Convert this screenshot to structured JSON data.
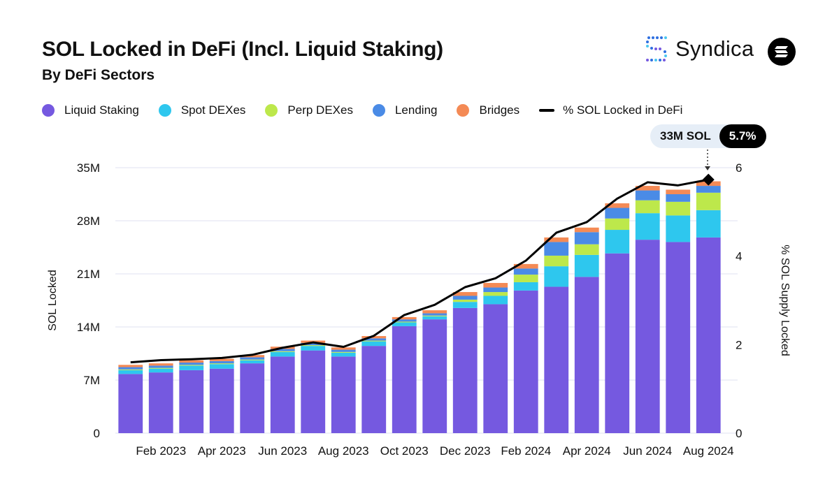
{
  "header": {
    "title": "SOL Locked in DeFi (Incl. Liquid Staking)",
    "subtitle": "By DeFi Sectors",
    "brand": "Syndica"
  },
  "callout": {
    "amount": "33M SOL",
    "percent": "5.7%"
  },
  "colors": {
    "liquid_staking": "#7559e0",
    "spot_dexes": "#2ec7ee",
    "perp_dexes": "#bde84b",
    "lending": "#4a8be6",
    "bridges": "#f48a55",
    "line": "#000000",
    "grid": "#dfe2f0"
  },
  "chart_data": {
    "type": "bar",
    "stacked": true,
    "ylabel": "SOL Locked",
    "y2label": "% SOL Supply Locked",
    "ylim": [
      0,
      35000000
    ],
    "y2lim": [
      0,
      6
    ],
    "yticks": [
      "0",
      "7M",
      "14M",
      "21M",
      "28M",
      "35M"
    ],
    "y2ticks": [
      "0",
      "2",
      "4",
      "6"
    ],
    "x_tick_labels": [
      "Feb 2023",
      "Apr 2023",
      "Jun 2023",
      "Aug 2023",
      "Oct 2023",
      "Dec 2023",
      "Feb 2024",
      "Apr 2024",
      "Jun 2024",
      "Aug 2024"
    ],
    "categories": [
      "Jan 2023",
      "Feb 2023",
      "Mar 2023",
      "Apr 2023",
      "May 2023",
      "Jun 2023",
      "Jul 2023",
      "Aug 2023",
      "Sep 2023",
      "Oct 2023",
      "Nov 2023",
      "Dec 2023",
      "Jan 2024",
      "Feb 2024",
      "Mar 2024",
      "Apr 2024",
      "May 2024",
      "Jun 2024",
      "Jul 2024",
      "Aug 2024"
    ],
    "series": [
      {
        "name": "Liquid Staking",
        "key": "liquid_staking",
        "values": [
          7.8,
          8.0,
          8.3,
          8.5,
          9.2,
          10.1,
          10.9,
          10.1,
          11.5,
          14.1,
          15.0,
          16.5,
          17.0,
          18.8,
          19.3,
          20.6,
          23.7,
          25.5,
          25.2,
          25.8
        ]
      },
      {
        "name": "Spot DEXes",
        "key": "spot_dexes",
        "values": [
          0.5,
          0.5,
          0.6,
          0.6,
          0.4,
          0.6,
          0.6,
          0.5,
          0.6,
          0.5,
          0.4,
          0.8,
          1.1,
          1.1,
          2.7,
          2.9,
          3.1,
          3.5,
          3.5,
          3.6
        ]
      },
      {
        "name": "Perp DEXes",
        "key": "perp_dexes",
        "values": [
          0.1,
          0.1,
          0.1,
          0.1,
          0.1,
          0.1,
          0.1,
          0.1,
          0.1,
          0.1,
          0.1,
          0.3,
          0.5,
          1.0,
          1.4,
          1.4,
          1.5,
          1.7,
          1.8,
          2.3
        ]
      },
      {
        "name": "Lending",
        "key": "lending",
        "values": [
          0.3,
          0.3,
          0.3,
          0.3,
          0.3,
          0.3,
          0.3,
          0.3,
          0.3,
          0.3,
          0.3,
          0.5,
          0.6,
          0.8,
          1.8,
          1.6,
          1.4,
          1.3,
          1.0,
          0.9
        ]
      },
      {
        "name": "Bridges",
        "key": "bridges",
        "values": [
          0.3,
          0.3,
          0.3,
          0.3,
          0.3,
          0.3,
          0.3,
          0.3,
          0.3,
          0.3,
          0.4,
          0.5,
          0.6,
          0.6,
          0.6,
          0.6,
          0.6,
          0.6,
          0.6,
          0.6
        ]
      }
    ],
    "value_unit": "M SOL",
    "line_series": {
      "name": "% SOL Locked in DeFi",
      "axis": "right",
      "values": [
        1.6,
        1.65,
        1.67,
        1.7,
        1.77,
        1.93,
        2.05,
        1.95,
        2.2,
        2.67,
        2.9,
        3.3,
        3.5,
        3.9,
        4.53,
        4.77,
        5.3,
        5.67,
        5.6,
        5.73
      ]
    }
  }
}
